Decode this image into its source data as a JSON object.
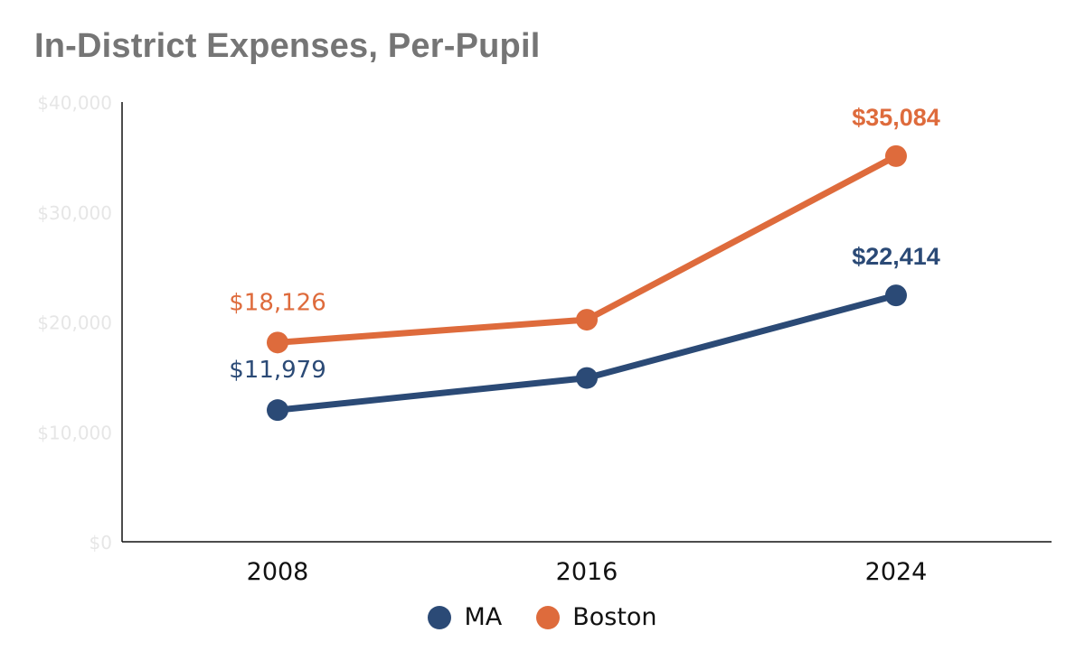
{
  "chart_data": {
    "type": "line",
    "title": "In-District Expenses, Per-Pupil",
    "categories": [
      "2008",
      "2016",
      "2024"
    ],
    "ylim": [
      0,
      40000
    ],
    "yticks": [
      0,
      10000,
      20000,
      30000,
      40000
    ],
    "ytick_labels": [
      "$0",
      "$10,000",
      "$20,000",
      "$30,000",
      "$40,000"
    ],
    "legend_position": "bottom-center",
    "series": [
      {
        "name": "MA",
        "color": "#2b4a76",
        "values": [
          11979,
          14900,
          22414
        ],
        "data_labels": [
          "$11,979",
          null,
          "$22,414"
        ],
        "label_bold": [
          false,
          false,
          true
        ]
      },
      {
        "name": "Boston",
        "color": "#de6b3c",
        "values": [
          18126,
          20200,
          35084
        ],
        "data_labels": [
          "$18,126",
          null,
          "$35,084"
        ],
        "label_bold": [
          false,
          false,
          true
        ]
      }
    ]
  }
}
